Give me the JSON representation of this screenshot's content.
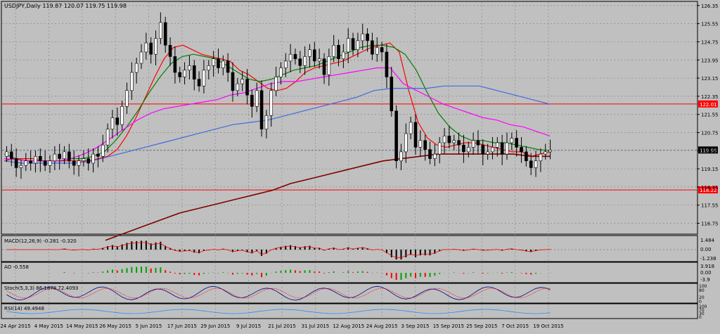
{
  "chart_data": {
    "type": "candlestick",
    "symbol_header": "USDJPY,Daily  119.87 120.07 119.75 119.98",
    "current_price_label": "119.98",
    "price_axis": {
      "ylim": [
        116.3,
        126.5
      ],
      "ticks": [
        "126.35",
        "125.55",
        "124.75",
        "123.95",
        "123.15",
        "122.35",
        "121.55",
        "120.75",
        "119.95",
        "119.15",
        "118.35",
        "117.55",
        "116.75"
      ]
    },
    "horizontal_lines": [
      {
        "value": 122.01,
        "label": "122.01",
        "color": "#ff0000"
      },
      {
        "value": 118.22,
        "label": "118.22",
        "color": "#ff0000"
      }
    ],
    "x_axis_labels": [
      "24 Apr 2015",
      "4 May 2015",
      "14 May 2015",
      "26 May 2015",
      "5 Jun 2015",
      "17 Jun 2015",
      "29 Jun 2015",
      "9 Jul 2015",
      "21 Jul 2015",
      "31 Jul 2015",
      "12 Aug 2015",
      "24 Aug 2015",
      "3 Sep 2015",
      "15 Sep 2015",
      "25 Sep 2015",
      "7 Oct 2015",
      "19 Oct 2015"
    ],
    "candles_close_approx": [
      119.9,
      119.6,
      119.2,
      119.3,
      119.5,
      119.4,
      119.7,
      119.5,
      119.3,
      119.5,
      119.8,
      119.6,
      119.9,
      119.5,
      119.3,
      119.5,
      119.6,
      119.4,
      119.8,
      119.7,
      120.2,
      120.9,
      121.4,
      121.1,
      121.9,
      122.6,
      123.4,
      123.8,
      124.3,
      124.7,
      124.2,
      124.9,
      125.6,
      124.6,
      124.1,
      123.4,
      123.2,
      123.5,
      123.7,
      123.1,
      122.8,
      123.5,
      123.7,
      124.0,
      123.6,
      123.9,
      123.4,
      122.6,
      122.9,
      123.1,
      122.4,
      121.9,
      122.6,
      120.9,
      121.5,
      122.6,
      123.2,
      123.6,
      123.9,
      124.2,
      124.0,
      123.7,
      124.1,
      124.4,
      123.9,
      124.0,
      123.3,
      124.1,
      124.6,
      124.0,
      124.3,
      124.9,
      124.4,
      124.8,
      125.1,
      124.8,
      124.2,
      124.5,
      124.3,
      123.2,
      121.7,
      119.5,
      119.9,
      120.7,
      121.2,
      120.1,
      120.4,
      120.0,
      119.6,
      119.8,
      120.3,
      120.6,
      120.3,
      120.4,
      120.2,
      119.9,
      120.1,
      120.4,
      120.2,
      119.8,
      119.9,
      120.1,
      120.3,
      119.8,
      120.3,
      120.5,
      120.1,
      119.9,
      119.5,
      119.2,
      119.5,
      119.8,
      119.9,
      119.98
    ],
    "moving_averages": [
      {
        "color": "#ff0000",
        "values": [
          119.5,
          119.6,
          119.6,
          119.6,
          119.5,
          119.5,
          119.5,
          119.5,
          119.5,
          119.5,
          119.6,
          119.7,
          120.0,
          120.6,
          121.4,
          122.3,
          123.2,
          124.0,
          124.5,
          124.6,
          124.4,
          124.2,
          124.1,
          124.0,
          123.9,
          123.5,
          123.3,
          123.0,
          122.7,
          122.6,
          122.7,
          123.0,
          123.4,
          123.6,
          123.7,
          123.8,
          123.9,
          124.1,
          124.3,
          124.5,
          124.6,
          124.7,
          124.3,
          122.6,
          121.2,
          120.5,
          120.2,
          120.1,
          120.2,
          120.3,
          120.3,
          120.2,
          120.1,
          120.0,
          119.9,
          119.9,
          119.7,
          119.8,
          119.9
        ]
      },
      {
        "color": "#008000",
        "values": [
          119.8,
          119.6,
          119.5,
          119.5,
          119.5,
          119.5,
          119.6,
          119.6,
          119.7,
          119.9,
          120.4,
          121.0,
          121.7,
          122.5,
          123.2,
          123.8,
          124.1,
          124.2,
          124.1,
          124.0,
          123.7,
          123.4,
          123.1,
          123.0,
          123.1,
          123.3,
          123.5,
          123.6,
          123.7,
          123.9,
          124.1,
          124.3,
          124.5,
          124.6,
          124.6,
          124.5,
          124.2,
          123.5,
          122.5,
          121.6,
          121.0,
          120.6,
          120.4,
          120.4,
          120.3,
          120.3,
          120.2,
          120.1,
          120.0,
          119.95
        ]
      },
      {
        "color": "#ff00ff",
        "values": [
          119.6,
          119.55,
          119.5,
          119.5,
          119.5,
          119.6,
          119.8,
          120.1,
          120.5,
          120.9,
          121.3,
          121.6,
          121.8,
          121.9,
          122.0,
          122.1,
          122.2,
          122.4,
          122.5,
          122.7,
          122.9,
          123.0,
          123.0,
          123.1,
          123.2,
          123.3,
          123.4,
          123.5,
          123.6,
          123.6,
          122.9,
          122.6,
          122.3,
          122.0,
          121.8,
          121.6,
          121.4,
          121.3,
          121.1,
          121.0,
          120.8,
          120.6
        ]
      },
      {
        "color": "#4169e1",
        "values": [
          119.5,
          119.4,
          119.4,
          119.4,
          119.4,
          119.5,
          119.7,
          119.9,
          120.1,
          120.3,
          120.5,
          120.7,
          120.9,
          121.1,
          121.2,
          121.3,
          121.5,
          121.7,
          121.9,
          122.1,
          122.3,
          122.6,
          122.7,
          122.7,
          122.7,
          122.8,
          122.8,
          122.8,
          122.6,
          122.4,
          122.2,
          122.0
        ]
      },
      {
        "color": "#800000",
        "values": [
          116.0,
          116.3,
          116.6,
          116.9,
          117.2,
          117.4,
          117.6,
          117.8,
          118.0,
          118.2,
          118.5,
          118.7,
          118.9,
          119.1,
          119.3,
          119.5,
          119.6,
          119.7,
          119.8,
          119.8,
          119.8,
          119.8,
          119.8,
          119.7,
          119.7
        ]
      }
    ],
    "indicators": [
      {
        "name": "MACD",
        "header": "MACD(12,26,9) -0.281 -0.320",
        "scale_labels": [
          "1.484",
          "0.00",
          "-1.238"
        ]
      },
      {
        "name": "AO",
        "header": "AO -0.558",
        "scale_labels": [
          "3.918",
          "0.00",
          "-3.9"
        ]
      },
      {
        "name": "Stochastic",
        "header": "Stoch(5,3,3) 86.1878 72.4093",
        "scale_labels": [
          "100",
          "80",
          "20",
          "0"
        ]
      },
      {
        "name": "RSI",
        "header": "RSI(14) 49.4948",
        "scale_labels": [
          "100",
          "70",
          "30",
          "0"
        ]
      }
    ],
    "colors": {
      "background": "#c0c0c0",
      "candle_up": "#ffffff",
      "candle_down": "#000000",
      "grid": "#8a8a8a",
      "macd_histogram": "#000000",
      "macd_signal": "#ff0000",
      "ao_up": "#00a000",
      "ao_down": "#ff0000",
      "stoch_main": "#00008b",
      "stoch_signal": "#ff0000",
      "rsi_line": "#1e90ff",
      "price_label_bg": "#000000",
      "level_label_bg": "#ff0000"
    }
  }
}
